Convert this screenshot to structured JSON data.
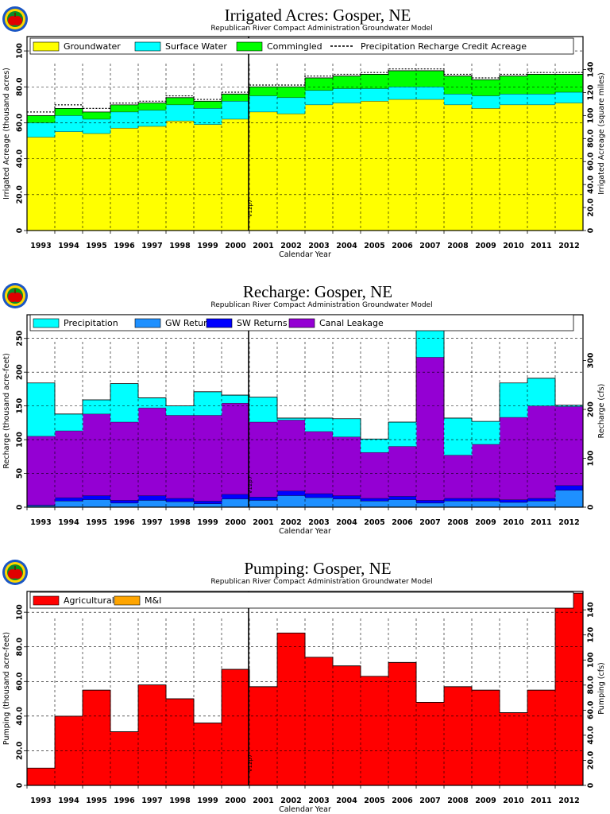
{
  "logo": {
    "icon": "apple-logo-icon"
  },
  "chart_data": [
    {
      "id": "irrigated",
      "type": "area",
      "stacked": true,
      "step": true,
      "title": "Irrigated Acres: Gosper, NE",
      "subtitle": "Republican River Compact Administration Groundwater Model",
      "xlabel": "Calendar Year",
      "ylabel": "Irrigated Acreage (thousand acres)",
      "ylabel_right": "Irrigated Acreage (square miles)",
      "categories": [
        "1993",
        "1994",
        "1995",
        "1996",
        "1997",
        "1998",
        "1999",
        "2000",
        "2001",
        "2002",
        "2003",
        "2004",
        "2005",
        "2006",
        "2007",
        "2008",
        "2009",
        "2010",
        "2011",
        "2012"
      ],
      "ylim": [
        0,
        108
      ],
      "yticks": [
        0,
        20.0,
        40.0,
        60.0,
        80.0,
        100
      ],
      "yticklabels": [
        "0",
        "20.0",
        "40.0",
        "60.0",
        "80.0",
        "100"
      ],
      "y2ticks": [
        0,
        20.0,
        40.0,
        60.0,
        80.0,
        100,
        120,
        140
      ],
      "y2ticklabels": [
        "0",
        "20.0",
        "40.0",
        "60.0",
        "80.0",
        "100",
        "120",
        "140"
      ],
      "y2_scale": 1.5625,
      "legend": [
        {
          "name": "Groundwater",
          "color": "#ffff00",
          "kind": "box"
        },
        {
          "name": "Surface Water",
          "color": "#00ffff",
          "kind": "box"
        },
        {
          "name": "Commingled",
          "color": "#00ff00",
          "kind": "box"
        },
        {
          "name": "Precipitation Recharge Credit Acreage",
          "color": "#000000",
          "kind": "dash"
        }
      ],
      "legend_position": "top",
      "grid": true,
      "series": [
        {
          "name": "Groundwater",
          "color": "#ffff00",
          "values": [
            52,
            55,
            54,
            57,
            58,
            61,
            59,
            62,
            66,
            65,
            70,
            71,
            72,
            73,
            73,
            70,
            68,
            70,
            70,
            71
          ]
        },
        {
          "name": "Surface Water",
          "color": "#00ffff",
          "values": [
            8,
            9,
            8,
            9,
            9,
            9,
            9,
            10,
            9,
            9,
            8,
            8,
            7,
            7,
            7,
            6,
            7,
            6,
            6,
            6
          ]
        },
        {
          "name": "Commingled",
          "color": "#00ff00",
          "values": [
            4,
            4,
            4,
            4,
            4,
            4,
            4,
            4,
            5,
            6,
            7,
            7,
            8,
            9,
            9,
            10,
            9,
            10,
            11,
            10
          ]
        }
      ],
      "line": {
        "name": "Precipitation Recharge Credit Acreage",
        "values": [
          66,
          70,
          68,
          71,
          72,
          75,
          73,
          77,
          81,
          81,
          86,
          87,
          88,
          90,
          90,
          87,
          85,
          87,
          88,
          88
        ]
      },
      "marker": {
        "label": "V12p7",
        "at": "2001"
      }
    },
    {
      "id": "recharge",
      "type": "area",
      "stacked": true,
      "step": true,
      "title": "Recharge: Gosper, NE",
      "subtitle": "Republican River Compact Administration Groundwater Model",
      "xlabel": "Calendar Year",
      "ylabel": "Recharge (thousand acre-feet)",
      "ylabel_right": "Recharge (cfs)",
      "categories": [
        "1993",
        "1994",
        "1995",
        "1996",
        "1997",
        "1998",
        "1999",
        "2000",
        "2001",
        "2002",
        "2003",
        "2004",
        "2005",
        "2006",
        "2007",
        "2008",
        "2009",
        "2010",
        "2011",
        "2012"
      ],
      "ylim": [
        0,
        285
      ],
      "yticks": [
        0,
        50,
        100,
        150,
        200,
        250
      ],
      "yticklabels": [
        "0",
        "50",
        "100",
        "150",
        "200",
        "250"
      ],
      "y2ticks": [
        0,
        100,
        200,
        300
      ],
      "y2ticklabels": [
        "0",
        "100",
        "200",
        "300"
      ],
      "y2_scale": 1.3812,
      "legend": [
        {
          "name": "Precipitation",
          "color": "#00ffff",
          "kind": "box"
        },
        {
          "name": "GW Returns",
          "color": "#1e90ff",
          "kind": "box"
        },
        {
          "name": "SW Returns",
          "color": "#0000ff",
          "kind": "box"
        },
        {
          "name": "Canal Leakage",
          "color": "#9400d3",
          "kind": "box"
        }
      ],
      "legend_position": "top",
      "grid": true,
      "series": [
        {
          "name": "GW Returns",
          "color": "#1e90ff",
          "values": [
            2,
            9,
            11,
            6,
            10,
            8,
            5,
            12,
            10,
            17,
            14,
            12,
            9,
            11,
            6,
            9,
            9,
            7,
            9,
            25
          ]
        },
        {
          "name": "SW Returns",
          "color": "#0000ff",
          "values": [
            1,
            5,
            6,
            4,
            7,
            5,
            4,
            7,
            5,
            7,
            6,
            5,
            4,
            5,
            4,
            4,
            4,
            4,
            4,
            7
          ]
        },
        {
          "name": "Canal Leakage",
          "color": "#9400d3",
          "values": [
            102,
            99,
            121,
            116,
            130,
            123,
            127,
            135,
            111,
            105,
            92,
            87,
            68,
            74,
            212,
            64,
            80,
            122,
            137,
            117
          ]
        },
        {
          "name": "Precipitation",
          "color": "#00ffff",
          "values": [
            79,
            25,
            21,
            57,
            15,
            14,
            35,
            12,
            37,
            3,
            20,
            27,
            20,
            36,
            57,
            55,
            34,
            51,
            41,
            2
          ]
        }
      ],
      "marker": {
        "label": "V12p7",
        "at": "2001"
      }
    },
    {
      "id": "pumping",
      "type": "area",
      "stacked": true,
      "step": true,
      "title": "Pumping: Gosper, NE",
      "subtitle": "Republican River Compact Administration Groundwater Model",
      "xlabel": "Calendar Year",
      "ylabel": "Pumping (thousand acre-feet)",
      "ylabel_right": "Pumping (cfs)",
      "categories": [
        "1993",
        "1994",
        "1995",
        "1996",
        "1997",
        "1998",
        "1999",
        "2000",
        "2001",
        "2002",
        "2003",
        "2004",
        "2005",
        "2006",
        "2007",
        "2008",
        "2009",
        "2010",
        "2011",
        "2012"
      ],
      "ylim": [
        0,
        112
      ],
      "yticks": [
        0,
        20.0,
        40.0,
        60.0,
        80.0,
        100
      ],
      "yticklabels": [
        "0",
        "20.0",
        "40.0",
        "60.0",
        "80.0",
        "100"
      ],
      "y2ticks": [
        0,
        20.0,
        40.0,
        60.0,
        80.0,
        100,
        120,
        140
      ],
      "y2ticklabels": [
        "0",
        "20.0",
        "40.0",
        "60.0",
        "80.0",
        "100",
        "120",
        "140"
      ],
      "y2_scale": 1.3812,
      "legend": [
        {
          "name": "Agricultural",
          "color": "#ff0000",
          "kind": "box"
        },
        {
          "name": "M&I",
          "color": "#ffa500",
          "kind": "box"
        }
      ],
      "legend_position": "top",
      "grid": true,
      "series": [
        {
          "name": "Agricultural",
          "color": "#ff0000",
          "values": [
            10,
            40,
            55,
            31,
            58,
            50,
            36,
            67,
            57,
            88,
            74,
            69,
            63,
            71,
            48,
            57,
            55,
            42,
            55,
            111
          ]
        },
        {
          "name": "M&I",
          "color": "#ffa500",
          "values": [
            0,
            0,
            0,
            0,
            0,
            0,
            0,
            0,
            0,
            0,
            0,
            0,
            0,
            0,
            0,
            0,
            0,
            0,
            0,
            0
          ]
        }
      ],
      "marker": {
        "label": "V12p7",
        "at": "2001"
      }
    }
  ]
}
